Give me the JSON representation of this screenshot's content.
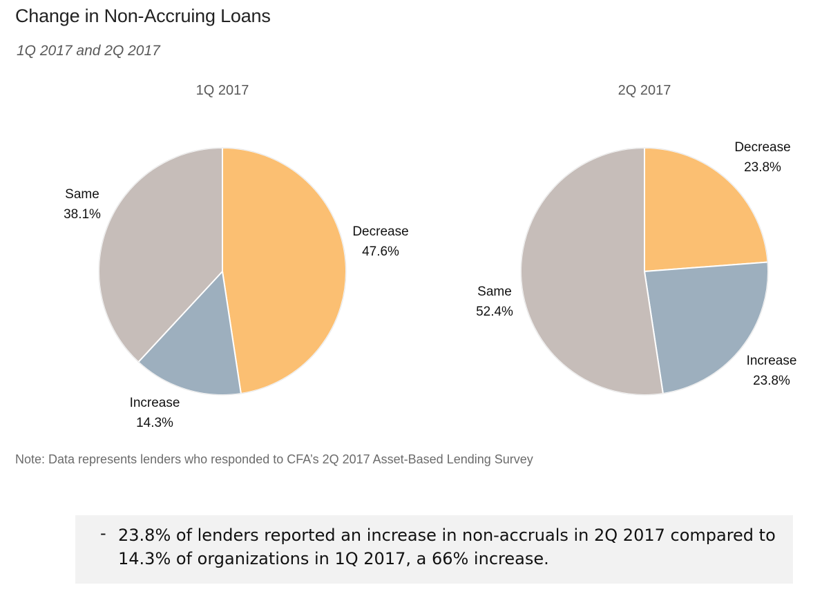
{
  "title": "Change in Non-Accruing Loans",
  "subtitle": "1Q 2017 and 2Q 2017",
  "chart_data": [
    {
      "type": "pie",
      "title": "1Q 2017",
      "slices": [
        {
          "label": "Decrease",
          "value": 47.6,
          "display": "47.6%",
          "color": "#FBBF72"
        },
        {
          "label": "Increase",
          "value": 14.3,
          "display": "14.3%",
          "color": "#9DAFBE"
        },
        {
          "label": "Same",
          "value": 38.1,
          "display": "38.1%",
          "color": "#C6BDB9"
        }
      ]
    },
    {
      "type": "pie",
      "title": "2Q 2017",
      "slices": [
        {
          "label": "Decrease",
          "value": 23.8,
          "display": "23.8%",
          "color": "#FBBF72"
        },
        {
          "label": "Increase",
          "value": 23.8,
          "display": "23.8%",
          "color": "#9DAFBE"
        },
        {
          "label": "Same",
          "value": 52.4,
          "display": "52.4%",
          "color": "#C6BDB9"
        }
      ]
    }
  ],
  "note": "Note: Data represents lenders who responded to CFA’s 2Q 2017 Asset-Based Lending Survey",
  "callout": {
    "bullet": "-",
    "text": "23.8% of lenders reported an increase in non-accruals in 2Q 2017 compared to 14.3% of organizations in 1Q 2017, a 66% increase."
  }
}
